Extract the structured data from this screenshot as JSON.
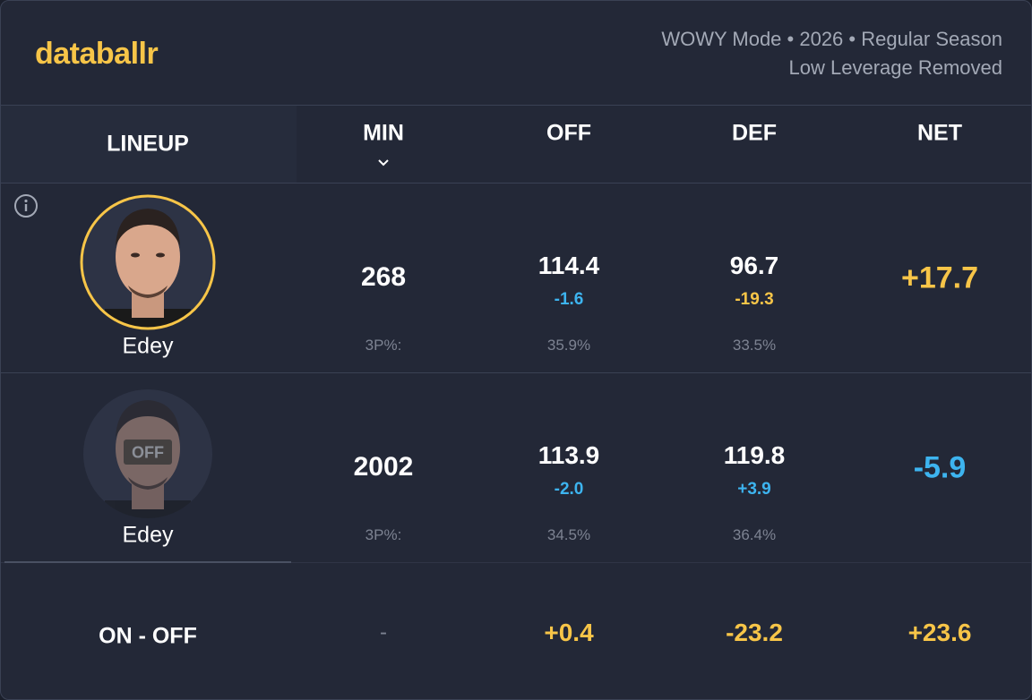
{
  "header": {
    "brand": "databallr",
    "subtitle_lines": [
      "WOWY Mode • 2026 • Regular Season",
      "Low Leverage Removed"
    ]
  },
  "table": {
    "columns": [
      "LINEUP",
      "MIN",
      "OFF",
      "DEF",
      "NET"
    ],
    "rows": [
      {
        "player": "Edey",
        "min": "268",
        "off": "114.4",
        "off_diff": "-1.6",
        "def": "96.7",
        "def_diff": "-19.3",
        "net": "+17.7",
        "three_pt_label": "3P%:",
        "off_three_pt": "35.9%",
        "def_three_pt": "33.5%"
      },
      {
        "badge": "OFF",
        "player": "Edey",
        "min": "2002",
        "off": "113.9",
        "off_diff": "-2.0",
        "def": "119.8",
        "def_diff": "+3.9",
        "net": "-5.9",
        "three_pt_label": "3P%:",
        "off_three_pt": "34.5%",
        "def_three_pt": "36.4%"
      }
    ],
    "summary": {
      "label": "ON - OFF",
      "min": "-",
      "off": "+0.4",
      "def": "-23.2",
      "net": "+23.6"
    }
  }
}
